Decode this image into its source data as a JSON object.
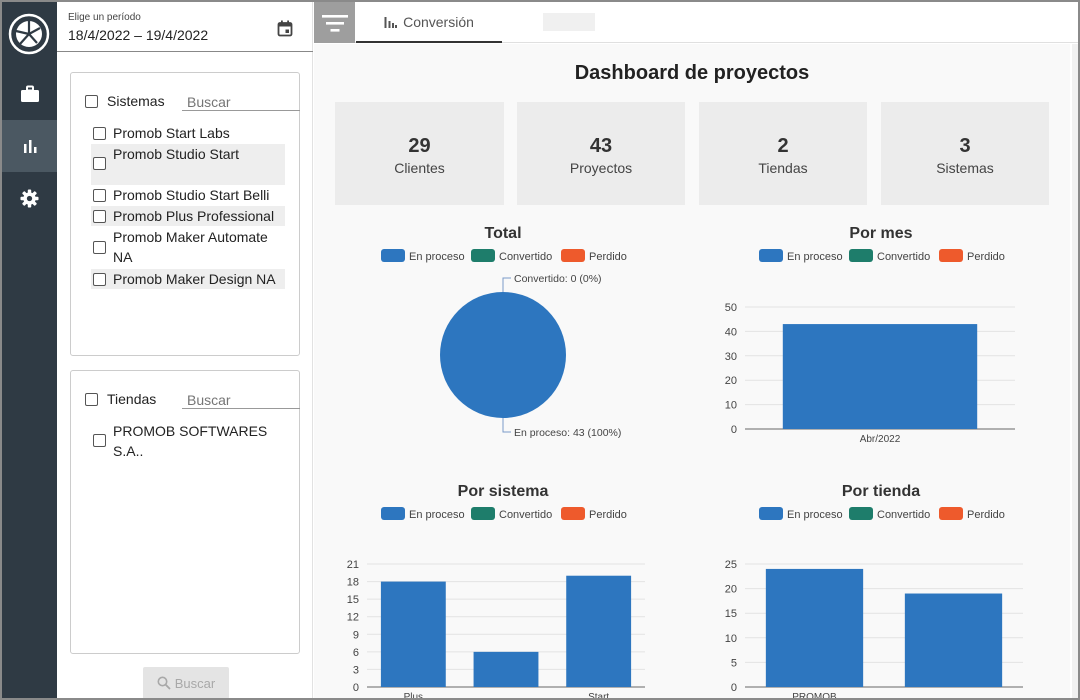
{
  "nav": {
    "logo": "pie-logo",
    "items": [
      {
        "icon": "briefcase-icon",
        "active": false
      },
      {
        "icon": "bar-chart-icon",
        "active": true
      },
      {
        "icon": "gear-icon",
        "active": false
      }
    ]
  },
  "period": {
    "label": "Elige un período",
    "value": "18/4/2022 – 19/4/2022"
  },
  "systems": {
    "title": "Sistemas",
    "placeholder": "Buscar",
    "items": [
      {
        "label": "Promob Start Labs"
      },
      {
        "label": "Promob Studio Start"
      },
      {
        "label": "Promob Studio Start Belli"
      },
      {
        "label": "Promob Plus Professional"
      },
      {
        "label": "Promob Maker Automate NA"
      },
      {
        "label": "Promob Maker Design NA"
      }
    ]
  },
  "stores": {
    "title": "Tiendas",
    "placeholder": "Buscar",
    "items": [
      {
        "label": "PROMOB SOFTWARES S.A.."
      }
    ]
  },
  "search_button": "Buscar",
  "tabs": [
    {
      "label": "Conversión",
      "icon": "bar-chart-small-icon"
    }
  ],
  "dashboard": {
    "title": "Dashboard de proyectos",
    "cards": [
      {
        "value": "29",
        "label": "Clientes"
      },
      {
        "value": "43",
        "label": "Proyectos"
      },
      {
        "value": "2",
        "label": "Tiendas"
      },
      {
        "value": "3",
        "label": "Sistemas"
      }
    ]
  },
  "legend": [
    {
      "name": "En proceso",
      "color": "#2d76bf"
    },
    {
      "name": "Convertido",
      "color": "#1e7d6b"
    },
    {
      "name": "Perdido",
      "color": "#ee5a2c"
    }
  ],
  "chart_data": [
    {
      "type": "pie",
      "title": "Total",
      "slices": [
        {
          "name": "En proceso",
          "value": 43,
          "label": "En proceso: 43 (100%)"
        },
        {
          "name": "Convertido",
          "value": 0,
          "label": "Convertido: 0 (0%)"
        }
      ]
    },
    {
      "type": "bar",
      "title": "Por mes",
      "categories": [
        "Abr/2022"
      ],
      "values": [
        43
      ],
      "ylim": [
        0,
        50
      ],
      "yticks": [
        0,
        10,
        20,
        30,
        40,
        50
      ]
    },
    {
      "type": "bar",
      "title": "Por sistema",
      "categories": [
        "Plus Professional",
        "",
        "Start Alforria"
      ],
      "values": [
        18,
        6,
        19
      ],
      "ylim": [
        0,
        21
      ],
      "yticks": [
        0,
        3,
        6,
        9,
        12,
        15,
        18,
        21
      ]
    },
    {
      "type": "bar",
      "title": "Por tienda",
      "categories": [
        "PROMOB SOFTWARES S.A..",
        ""
      ],
      "values": [
        24,
        19
      ],
      "ylim": [
        0,
        25
      ],
      "yticks": [
        0,
        5,
        10,
        15,
        20,
        25
      ]
    }
  ]
}
